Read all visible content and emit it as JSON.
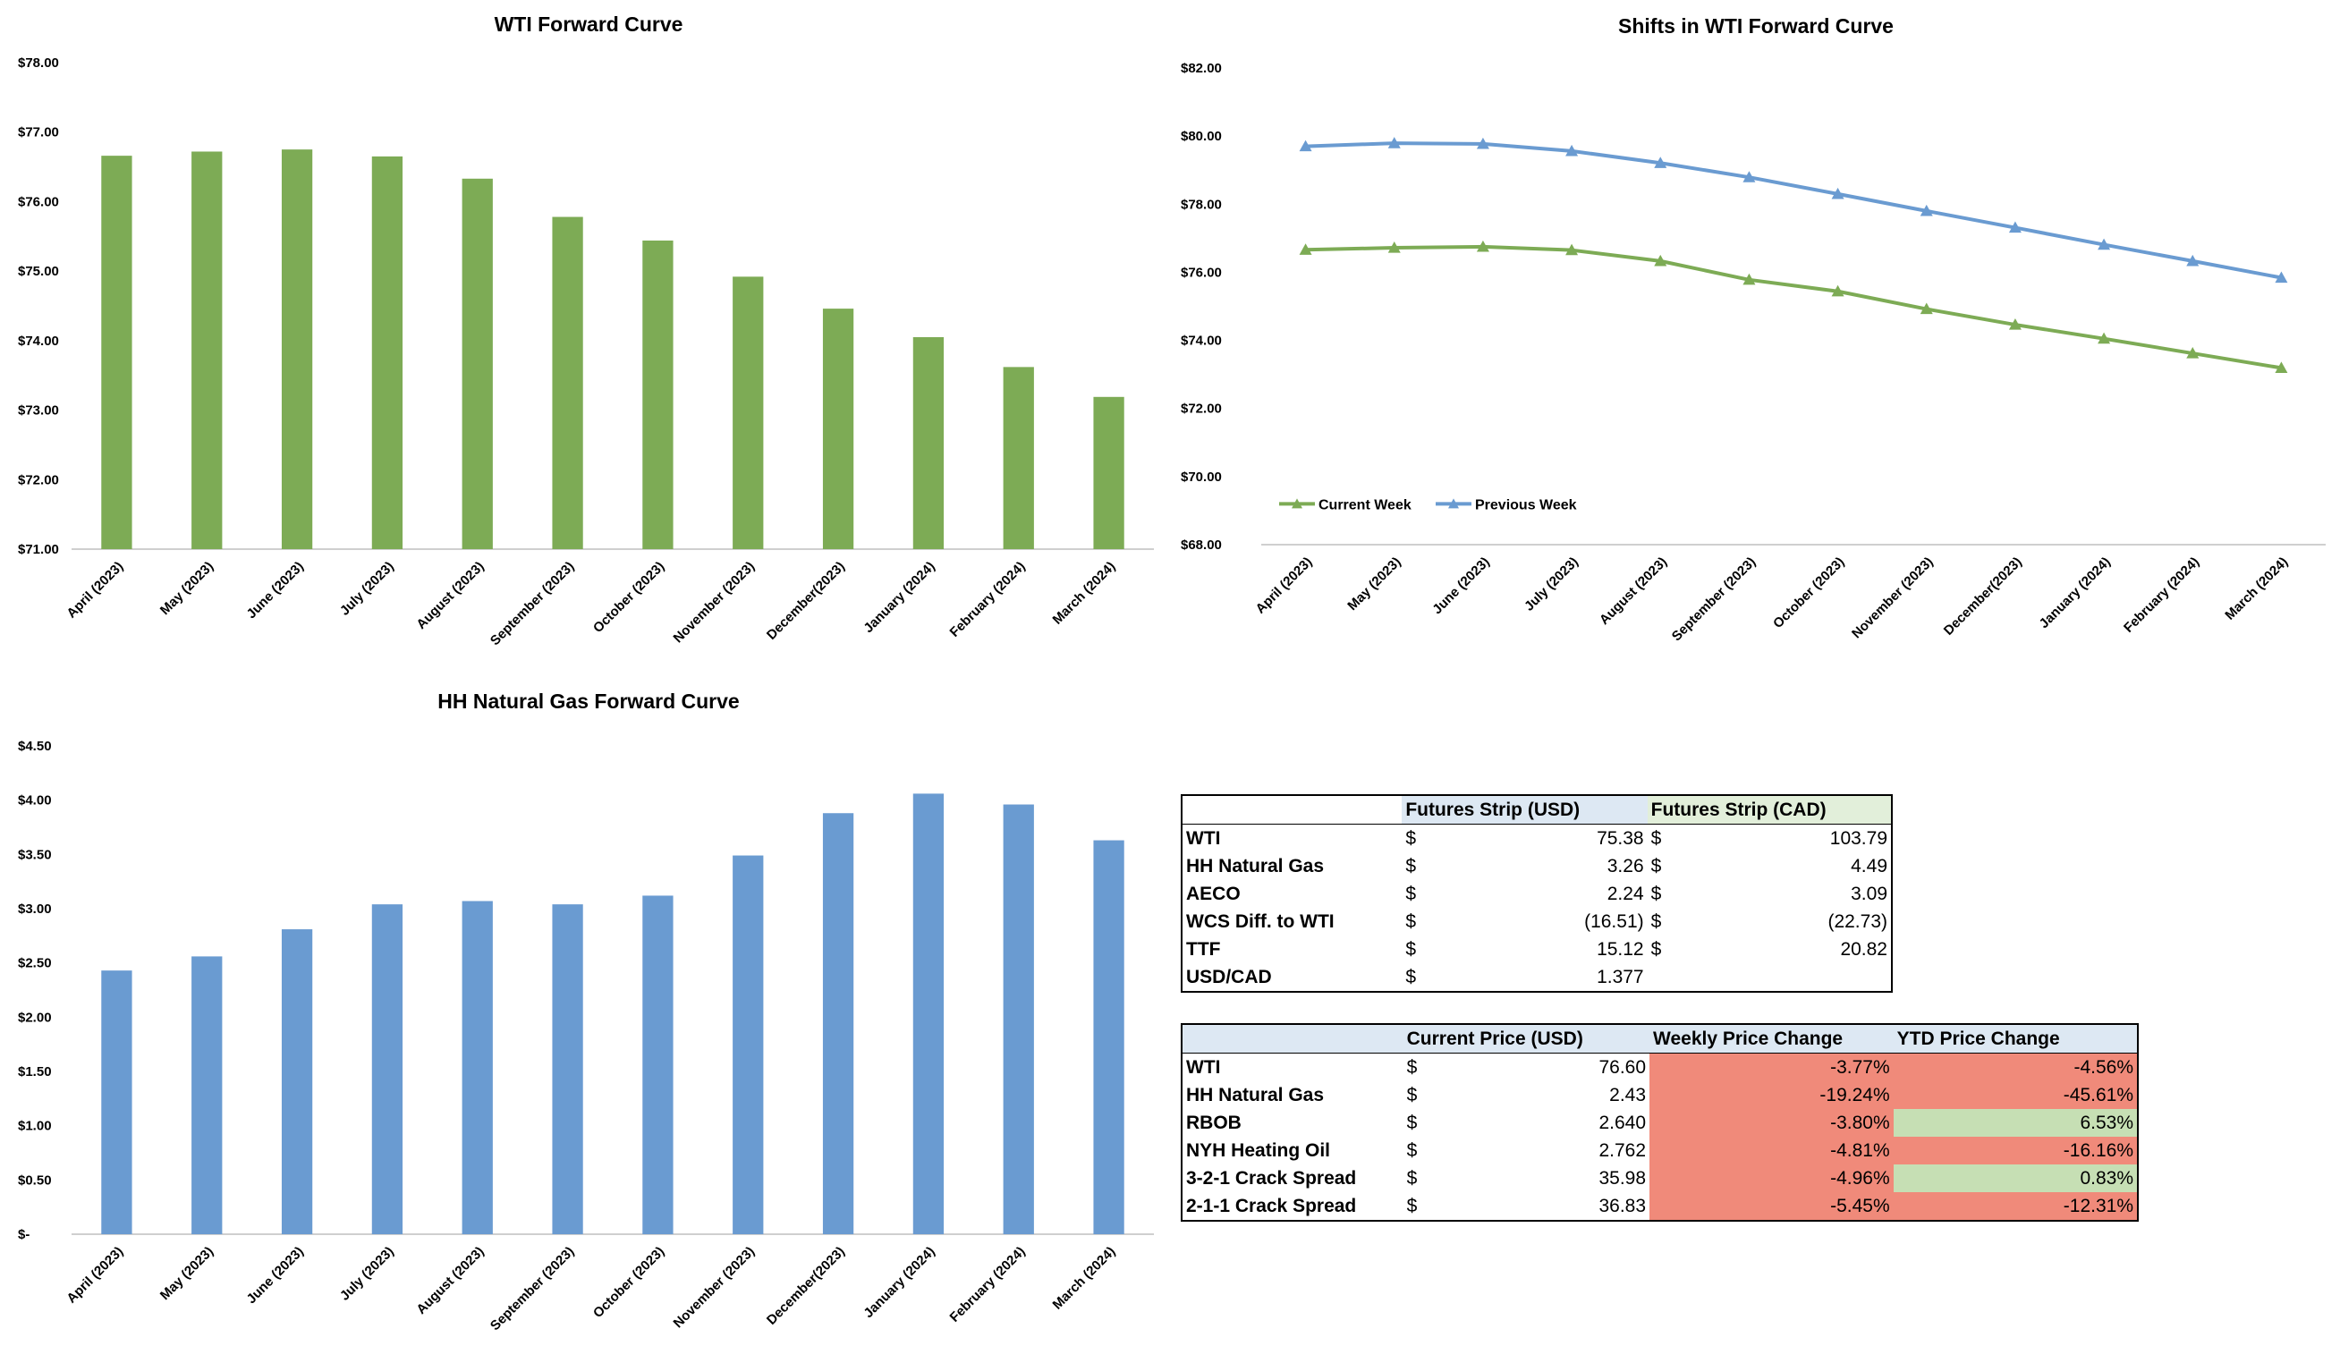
{
  "colors": {
    "green": "#7dab55",
    "blue": "#6a9bd1",
    "axis": "#bfbfbf",
    "header_blue": "#dde8f3",
    "header_green": "#e2efda",
    "negative": "#f08a7a",
    "positive": "#c6dfb4"
  },
  "chart_data": [
    {
      "id": "wti",
      "type": "bar",
      "title": "WTI Forward Curve",
      "categories": [
        "April (2023)",
        "May (2023)",
        "June (2023)",
        "July (2023)",
        "August (2023)",
        "September (2023)",
        "October (2023)",
        "November (2023)",
        "December(2023)",
        "January (2024)",
        "February (2024)",
        "March (2024)"
      ],
      "values": [
        76.66,
        76.72,
        76.75,
        76.65,
        76.33,
        75.78,
        75.44,
        74.92,
        74.46,
        74.05,
        73.62,
        73.19
      ],
      "ylim": [
        71,
        78
      ],
      "yticks": [
        71,
        72,
        73,
        74,
        75,
        76,
        77,
        78
      ],
      "ytick_labels": [
        "$71.00",
        "$72.00",
        "$73.00",
        "$74.00",
        "$75.00",
        "$76.00",
        "$77.00",
        "$78.00"
      ],
      "xlabel": "",
      "ylabel": "",
      "grid": false
    },
    {
      "id": "shifts",
      "type": "line",
      "title": "Shifts in WTI Forward Curve",
      "categories": [
        "April (2023)",
        "May (2023)",
        "June (2023)",
        "July (2023)",
        "August (2023)",
        "September (2023)",
        "October (2023)",
        "November (2023)",
        "December(2023)",
        "January (2024)",
        "February (2024)",
        "March (2024)"
      ],
      "series": [
        {
          "name": "Current Week",
          "color": "#7dab55",
          "values": [
            76.66,
            76.72,
            76.75,
            76.65,
            76.33,
            75.78,
            75.44,
            74.92,
            74.46,
            74.05,
            73.62,
            73.19
          ]
        },
        {
          "name": "Previous Week",
          "color": "#6a9bd1",
          "values": [
            79.7,
            79.79,
            79.77,
            79.56,
            79.21,
            78.79,
            78.3,
            77.8,
            77.31,
            76.81,
            76.33,
            75.84
          ]
        }
      ],
      "ylim": [
        68,
        82
      ],
      "yticks": [
        68,
        70,
        72,
        74,
        76,
        78,
        80,
        82
      ],
      "ytick_labels": [
        "$68.00",
        "$70.00",
        "$72.00",
        "$74.00",
        "$76.00",
        "$78.00",
        "$80.00",
        "$82.00"
      ],
      "legend_position": "bottom-left",
      "xlabel": "",
      "ylabel": "",
      "grid": false
    },
    {
      "id": "hh",
      "type": "bar",
      "title": "HH Natural Gas Forward Curve",
      "categories": [
        "April (2023)",
        "May (2023)",
        "June (2023)",
        "July (2023)",
        "August (2023)",
        "September (2023)",
        "October (2023)",
        "November (2023)",
        "December(2023)",
        "January (2024)",
        "February (2024)",
        "March (2024)"
      ],
      "values": [
        2.43,
        2.56,
        2.81,
        3.04,
        3.07,
        3.04,
        3.12,
        3.49,
        3.88,
        4.06,
        3.96,
        3.63
      ],
      "ylim": [
        0,
        4.5
      ],
      "yticks": [
        0,
        0.5,
        1,
        1.5,
        2,
        2.5,
        3,
        3.5,
        4,
        4.5
      ],
      "ytick_labels": [
        "$-",
        "$0.50",
        "$1.00",
        "$1.50",
        "$2.00",
        "$2.50",
        "$3.00",
        "$3.50",
        "$4.00",
        "$4.50"
      ],
      "xlabel": "",
      "ylabel": "",
      "grid": false
    }
  ],
  "strip_table": {
    "headers": [
      "",
      "Futures Strip (USD)",
      "Futures Strip (CAD)"
    ],
    "rows": [
      {
        "label": "WTI",
        "usd_cur": "$",
        "usd": "75.38",
        "cad_cur": "$",
        "cad": "103.79"
      },
      {
        "label": "HH Natural Gas",
        "usd_cur": "$",
        "usd": "3.26",
        "cad_cur": "$",
        "cad": "4.49"
      },
      {
        "label": "AECO",
        "usd_cur": "$",
        "usd": "2.24",
        "cad_cur": "$",
        "cad": "3.09"
      },
      {
        "label": "WCS Diff. to WTI",
        "usd_cur": "$",
        "usd": "(16.51)",
        "cad_cur": "$",
        "cad": "(22.73)"
      },
      {
        "label": "TTF",
        "usd_cur": "$",
        "usd": "15.12",
        "cad_cur": "$",
        "cad": "20.82"
      },
      {
        "label": "USD/CAD",
        "usd_cur": "$",
        "usd": "1.377",
        "cad_cur": "",
        "cad": ""
      }
    ]
  },
  "price_table": {
    "headers": [
      "",
      "Current Price (USD)",
      "Weekly Price Change",
      "YTD Price Change"
    ],
    "rows": [
      {
        "label": "WTI",
        "cur": "$",
        "price": "76.60",
        "weekly": "-3.77%",
        "weekly_status": "neg",
        "ytd": "-4.56%",
        "ytd_status": "neg"
      },
      {
        "label": "HH Natural Gas",
        "cur": "$",
        "price": "2.43",
        "weekly": "-19.24%",
        "weekly_status": "neg",
        "ytd": "-45.61%",
        "ytd_status": "neg"
      },
      {
        "label": "RBOB",
        "cur": "$",
        "price": "2.640",
        "weekly": "-3.80%",
        "weekly_status": "neg",
        "ytd": "6.53%",
        "ytd_status": "pos"
      },
      {
        "label": "NYH Heating Oil",
        "cur": "$",
        "price": "2.762",
        "weekly": "-4.81%",
        "weekly_status": "neg",
        "ytd": "-16.16%",
        "ytd_status": "neg"
      },
      {
        "label": "3-2-1 Crack Spread",
        "cur": "$",
        "price": "35.98",
        "weekly": "-4.96%",
        "weekly_status": "neg",
        "ytd": "0.83%",
        "ytd_status": "pos"
      },
      {
        "label": "2-1-1 Crack Spread",
        "cur": "$",
        "price": "36.83",
        "weekly": "-5.45%",
        "weekly_status": "neg",
        "ytd": "-12.31%",
        "ytd_status": "neg"
      }
    ]
  }
}
